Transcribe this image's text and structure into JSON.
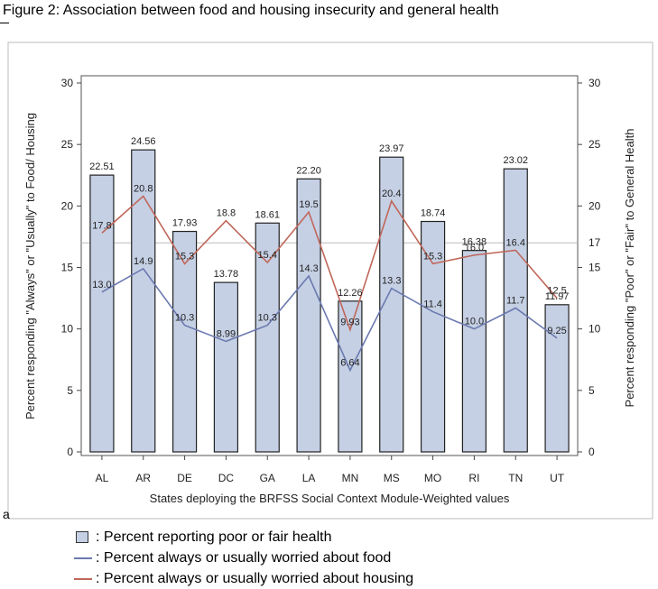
{
  "figure": {
    "title": "Figure 2:  Association between food and housing insecurity and general health",
    "side_letter": "a"
  },
  "chart_data": {
    "type": "bar",
    "xlabel": "States deploying the BRFSS Social Context Module-Weighted values",
    "ylabel_left": "Percent responding \"Always\" or \"Usually\" to Food/ Housing",
    "ylabel_right": "Percent responding \"Poor\" or \"Fair\" to General Health",
    "ylim": [
      0,
      30
    ],
    "yticks": [
      0,
      5,
      10,
      15,
      20,
      25,
      30
    ],
    "reference_line": {
      "value": 17,
      "label": "17"
    },
    "categories": [
      "AL",
      "AR",
      "DE",
      "DC",
      "GA",
      "LA",
      "MN",
      "MS",
      "MO",
      "RI",
      "TN",
      "UT"
    ],
    "bars": {
      "values": [
        22.51,
        24.56,
        17.93,
        13.78,
        18.61,
        22.2,
        12.26,
        23.97,
        18.74,
        16.38,
        23.02,
        11.97
      ],
      "labels": [
        "22.51",
        "24.56",
        "17.93",
        "13.78",
        "18.61",
        "22.20",
        "12.26",
        "23.97",
        "18.74",
        "16.38",
        "23.02",
        "11.97"
      ],
      "color": "#c5d0e4"
    },
    "series": [
      {
        "key": "food",
        "values": [
          13.0,
          14.9,
          10.3,
          8.99,
          10.3,
          14.3,
          6.64,
          13.3,
          11.4,
          10.0,
          11.7,
          9.25
        ],
        "labels": [
          "13.0",
          "14.9",
          "10.3",
          "8.99",
          "10.3",
          "14.3",
          "6.64",
          "13.3",
          "11.4",
          "10.0",
          "11.7",
          "9.25"
        ],
        "color": "#6b79b0"
      },
      {
        "key": "housing",
        "values": [
          17.8,
          20.8,
          15.3,
          18.8,
          15.4,
          19.5,
          9.93,
          20.4,
          15.3,
          16.0,
          16.4,
          12.5
        ],
        "labels": [
          "17.8",
          "20.8",
          "15.3",
          "18.8",
          "15.4",
          "19.5",
          "9.93",
          "20.4",
          "15.3",
          "16.0",
          "16.4",
          "12.5"
        ],
        "color": "#c0675a"
      }
    ],
    "legend": {
      "items": [
        {
          "key": "bars",
          "label": ": Percent reporting poor or fair health"
        },
        {
          "key": "food",
          "label": ": Percent always or usually worried about food"
        },
        {
          "key": "housing",
          "label": ": Percent always or usually worried about housing"
        }
      ],
      "placement": "bottom"
    }
  }
}
